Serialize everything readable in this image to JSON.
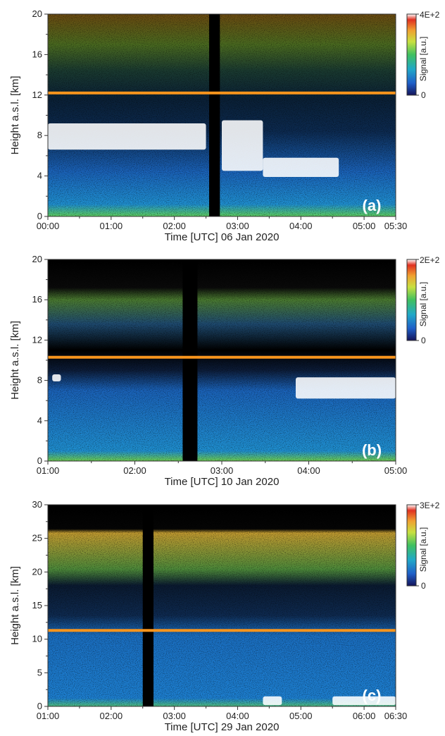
{
  "chart_data": [
    {
      "type": "heatmap",
      "panel_label": "(a)",
      "xlabel": "Time [UTC] 06 Jan 2020",
      "ylabel": "Height a.s.l. [km]",
      "x_ticks": [
        "00:00",
        "01:00",
        "02:00",
        "03:00",
        "04:00",
        "05:00",
        "05:30"
      ],
      "x_tick_hours": [
        0,
        1,
        2,
        3,
        4,
        5,
        5.5
      ],
      "x_range_hours": [
        0,
        5.5
      ],
      "y_ticks": [
        0,
        4,
        8,
        12,
        16,
        20
      ],
      "ylim": [
        0,
        20
      ],
      "colorbar": {
        "label": "Signal [a.u.]",
        "max_label": "4E+2",
        "min_label": "0"
      },
      "reference_line_km": 12.2,
      "reference_line_color": "#f7941d",
      "data_gaps_hours": [
        [
          2.55,
          2.72
        ]
      ],
      "cloud_layers": [
        {
          "t0": 0.0,
          "t1": 2.5,
          "base_km": 6.6,
          "top_km": 9.2
        },
        {
          "t0": 2.75,
          "t1": 3.4,
          "base_km": 4.5,
          "top_km": 9.5
        },
        {
          "t0": 3.4,
          "t1": 4.6,
          "base_km": 3.9,
          "top_km": 5.8
        }
      ]
    },
    {
      "type": "heatmap",
      "panel_label": "(b)",
      "xlabel": "Time [UTC] 10 Jan 2020",
      "ylabel": "Height a.s.l. [km]",
      "x_ticks": [
        "01:00",
        "02:00",
        "03:00",
        "04:00",
        "05:00"
      ],
      "x_tick_hours": [
        1,
        2,
        3,
        4,
        5
      ],
      "x_range_hours": [
        1,
        5
      ],
      "y_ticks": [
        0,
        4,
        8,
        12,
        16,
        20
      ],
      "ylim": [
        0,
        20
      ],
      "colorbar": {
        "label": "Signal [a.u.]",
        "max_label": "2E+2",
        "min_label": "0"
      },
      "reference_line_km": 10.3,
      "reference_line_color": "#f7941d",
      "data_gaps_hours": [
        [
          2.55,
          2.72
        ]
      ],
      "cloud_layers": [
        {
          "t0": 3.85,
          "t1": 5.0,
          "base_km": 6.2,
          "top_km": 8.3
        },
        {
          "t0": 1.05,
          "t1": 1.15,
          "base_km": 7.9,
          "top_km": 8.6
        }
      ]
    },
    {
      "type": "heatmap",
      "panel_label": "(c)",
      "xlabel": "Time [UTC] 29 Jan 2020",
      "ylabel": "Height a.s.l. [km]",
      "x_ticks": [
        "01:00",
        "02:00",
        "03:00",
        "04:00",
        "05:00",
        "06:00",
        "06:30"
      ],
      "x_tick_hours": [
        1,
        2,
        3,
        4,
        5,
        6,
        6.5
      ],
      "x_range_hours": [
        1,
        6.5
      ],
      "y_ticks": [
        0,
        5,
        10,
        15,
        20,
        25,
        30
      ],
      "ylim": [
        0,
        30
      ],
      "colorbar": {
        "label": "Signal [a.u.]",
        "max_label": "3E+2",
        "min_label": "0"
      },
      "reference_line_km": 11.3,
      "reference_line_color": "#f7941d",
      "data_gaps_hours": [
        [
          2.5,
          2.67
        ]
      ],
      "cloud_layers": [
        {
          "t0": 4.4,
          "t1": 4.7,
          "base_km": 0.2,
          "top_km": 1.5
        },
        {
          "t0": 5.5,
          "t1": 6.5,
          "base_km": 0.2,
          "top_km": 1.5
        }
      ]
    }
  ]
}
